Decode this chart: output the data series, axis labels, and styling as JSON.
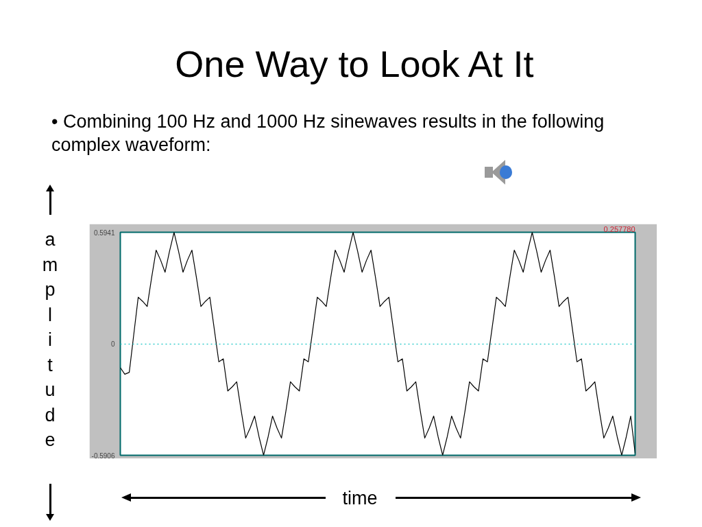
{
  "chart_data": {
    "type": "line",
    "title": "One Way to Look At It",
    "subtitle": "• Combining 100 Hz and 1000 Hz sinewaves results in the following complex waveform:",
    "xlabel": "time",
    "ylabel": "amplitude",
    "annotations": [
      "0.257780"
    ],
    "categories": [
      null,
      null,
      null,
      null,
      null,
      null,
      null,
      null,
      null,
      null,
      null,
      null,
      null,
      null,
      null,
      null,
      null,
      null,
      null,
      null,
      null,
      null,
      null,
      null,
      null,
      null,
      null,
      null,
      null,
      null,
      null,
      null,
      null,
      null,
      null,
      null,
      null,
      null,
      null,
      null,
      null,
      null,
      null,
      null,
      null,
      null,
      null,
      null,
      null,
      null,
      null,
      null,
      null,
      null,
      null,
      null,
      null,
      null,
      null,
      null,
      null,
      null,
      null,
      null,
      null,
      null,
      null,
      null,
      null,
      null,
      null,
      null,
      null,
      null,
      null,
      null,
      null,
      null,
      null,
      null,
      null,
      null,
      null,
      null,
      null,
      null,
      null,
      null,
      null,
      null,
      null,
      null,
      null,
      null,
      null,
      null,
      null,
      null,
      null,
      null,
      null,
      null,
      null,
      null,
      null,
      null,
      null,
      null,
      null,
      null,
      null,
      null,
      null,
      null,
      null,
      null
    ],
    "series": [
      {
        "color": "#000000",
        "values": [
          -0.125,
          -0.16,
          -0.15,
          0.05,
          0.249,
          0.227,
          0.2,
          0.354,
          0.499,
          0.446,
          0.382,
          0.494,
          0.594,
          0.494,
          0.382,
          0.446,
          0.499,
          0.354,
          0.2,
          0.227,
          0.249,
          0.078,
          -0.094,
          -0.078,
          -0.249,
          -0.227,
          -0.2,
          -0.354,
          -0.499,
          -0.446,
          -0.382,
          -0.494,
          -0.59,
          -0.494,
          -0.382,
          -0.446,
          -0.499,
          -0.354,
          -0.2,
          -0.227,
          -0.249,
          -0.078,
          -0.094,
          0.078,
          0.249,
          0.227,
          0.2,
          0.354,
          0.499,
          0.446,
          0.382,
          0.494,
          0.594,
          0.494,
          0.382,
          0.446,
          0.499,
          0.354,
          0.2,
          0.227,
          0.249,
          0.078,
          -0.094,
          -0.078,
          -0.249,
          -0.227,
          -0.2,
          -0.354,
          -0.499,
          -0.446,
          -0.382,
          -0.494,
          -0.59,
          -0.494,
          -0.382,
          -0.446,
          -0.499,
          -0.354,
          -0.2,
          -0.227,
          -0.249,
          -0.078,
          -0.094,
          0.078,
          0.249,
          0.227,
          0.2,
          0.354,
          0.499,
          0.446,
          0.382,
          0.494,
          0.594,
          0.494,
          0.382,
          0.446,
          0.499,
          0.354,
          0.2,
          0.227,
          0.249,
          0.078,
          -0.094,
          -0.078,
          -0.249,
          -0.227,
          -0.2,
          -0.354,
          -0.499,
          -0.446,
          -0.382,
          -0.494,
          -0.59,
          -0.494,
          -0.382,
          -0.58
        ]
      }
    ],
    "ylim": [
      -0.5906,
      0.5941
    ],
    "yticks": [
      -0.5906,
      0,
      0.5941
    ],
    "ref_lines": [
      {
        "axis": "y",
        "value": 0,
        "color": "#33cccc",
        "line_style": "dotted"
      }
    ],
    "tick_labels": "y"
  }
}
